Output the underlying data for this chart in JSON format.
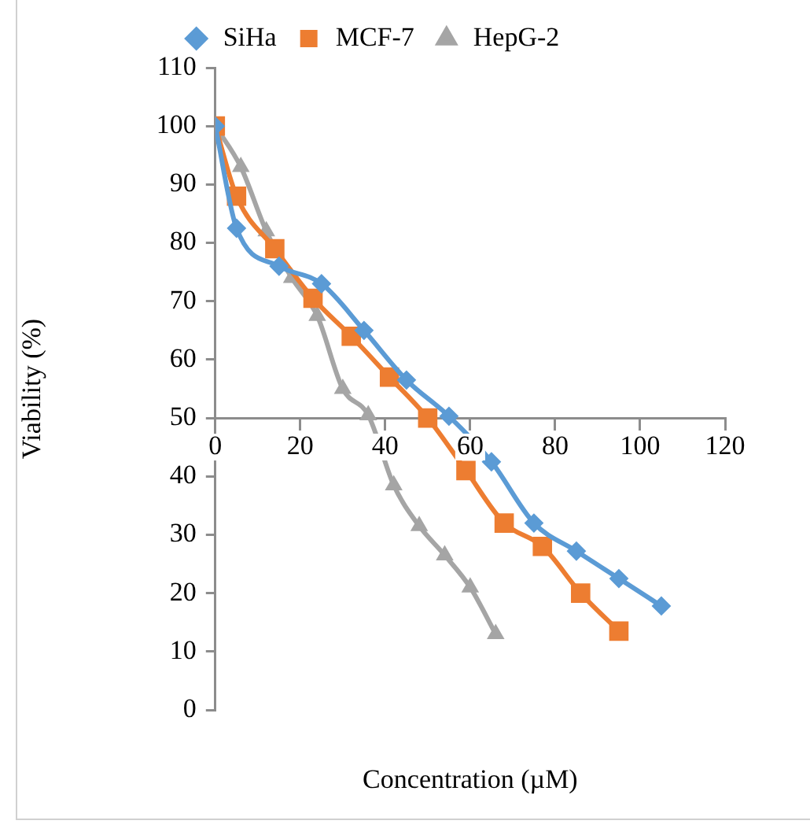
{
  "chart_data": {
    "type": "line",
    "xlabel": "Concentration (µM)",
    "ylabel": "Viability (%)",
    "xlim": [
      0,
      120
    ],
    "xticks": [
      0,
      20,
      40,
      60,
      80,
      100,
      120
    ],
    "ylim": [
      0,
      110
    ],
    "yticks": [
      0,
      10,
      20,
      30,
      40,
      50,
      60,
      70,
      80,
      90,
      100,
      110
    ],
    "grid": false,
    "legend": "top",
    "line_style": "solid",
    "series": [
      {
        "name": "SiHa",
        "color": "#5b9bd5",
        "marker": "diamond",
        "x": [
          0,
          5,
          15,
          25,
          35,
          45,
          55,
          65,
          75,
          85,
          95,
          105
        ],
        "values": [
          100,
          82.5,
          76,
          73,
          65,
          56.5,
          50.3,
          42.5,
          32,
          27.2,
          22.5,
          17.8
        ]
      },
      {
        "name": "MCF-7",
        "color": "#ed7d31",
        "marker": "square",
        "x": [
          0,
          5,
          14,
          23,
          32,
          41,
          50,
          59,
          68,
          77,
          86,
          95
        ],
        "values": [
          100,
          88,
          79,
          70.5,
          64,
          57,
          50,
          41,
          32,
          28,
          20,
          13.5
        ]
      },
      {
        "name": "HepG-2",
        "color": "#a5a5a5",
        "marker": "triangle",
        "x": [
          0,
          6,
          12,
          18,
          24,
          30,
          36,
          42,
          48,
          54,
          60,
          66
        ],
        "values": [
          100,
          93,
          82,
          74,
          67.5,
          55,
          50.5,
          38.5,
          31.5,
          26.5,
          21,
          13
        ]
      }
    ]
  }
}
